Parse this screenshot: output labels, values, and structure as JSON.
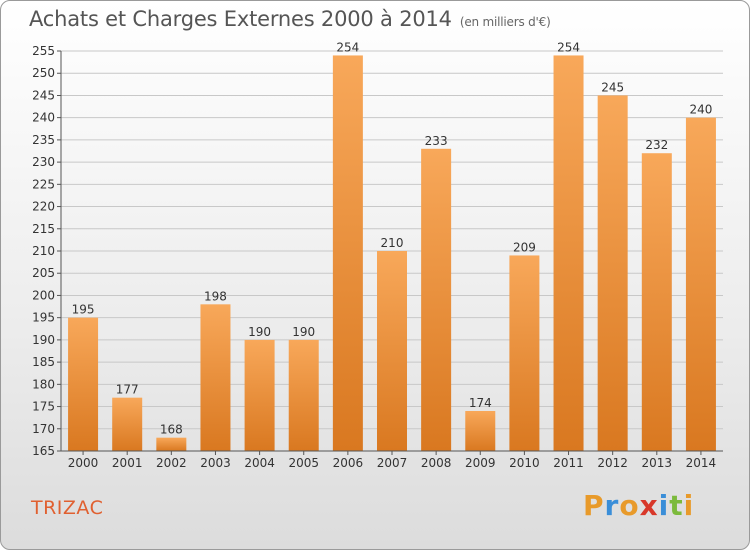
{
  "header": {
    "title": "Achats et Charges Externes 2000 à 2014",
    "subtitle": "(en milliers d'€)"
  },
  "footer": {
    "commune": "TRIZAC",
    "logo_letters": [
      {
        "ch": "P",
        "color": "#e89a2a"
      },
      {
        "ch": "r",
        "color": "#3a8ed8"
      },
      {
        "ch": "o",
        "color": "#e89a2a"
      },
      {
        "ch": "x",
        "color": "#d8382a"
      },
      {
        "ch": "i",
        "color": "#3a8ed8"
      },
      {
        "ch": "t",
        "color": "#7cba3c"
      },
      {
        "ch": "i",
        "color": "#e89a2a"
      }
    ]
  },
  "colors": {
    "bar_light": "#f8a85a",
    "bar_dark": "#d97820",
    "grid": "#c8c8c8",
    "axis": "#555555"
  },
  "chart_data": {
    "type": "bar",
    "categories": [
      "2000",
      "2001",
      "2002",
      "2003",
      "2004",
      "2005",
      "2006",
      "2007",
      "2008",
      "2009",
      "2010",
      "2011",
      "2012",
      "2013",
      "2014"
    ],
    "values": [
      195,
      177,
      168,
      198,
      190,
      190,
      254,
      210,
      233,
      174,
      209,
      254,
      245,
      232,
      240
    ],
    "value_labels": [
      "195",
      "177",
      "168",
      "198",
      "190",
      "190",
      "254",
      "210",
      "233",
      "174",
      "209",
      "254",
      "245",
      "232",
      "240"
    ],
    "ylim": [
      165,
      255
    ],
    "yticks": [
      165,
      170,
      175,
      180,
      185,
      190,
      195,
      200,
      205,
      210,
      215,
      220,
      225,
      230,
      235,
      240,
      245,
      250,
      255
    ],
    "grid": true,
    "xlabel": "",
    "ylabel": ""
  }
}
